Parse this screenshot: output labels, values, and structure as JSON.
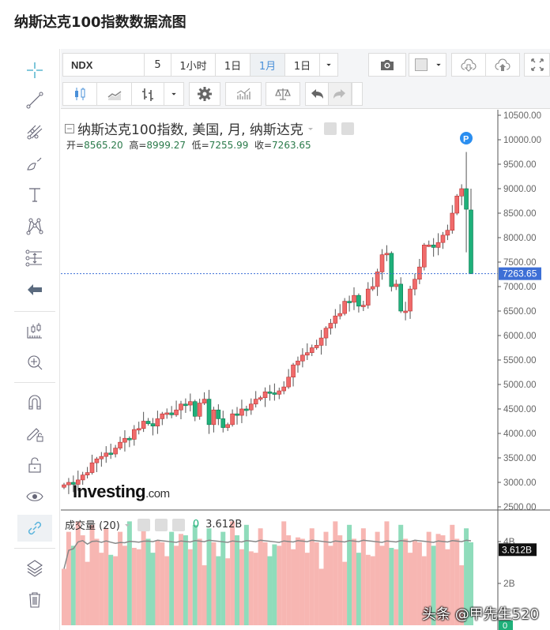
{
  "page_title": "纳斯达克100指数数据流图",
  "toolbar": {
    "symbol": "NDX",
    "intervals": [
      "5",
      "1小时",
      "1日",
      "1月",
      "1日"
    ],
    "selected_interval": "1月",
    "chart_type_icons": [
      "candlestick-icon",
      "line-chart-icon",
      "bar-chart-icon",
      "dropdown-icon",
      "settings-icon",
      "indicators-icon",
      "compare-icon",
      "undo-icon",
      "redo-icon"
    ],
    "right_icons": [
      "camera-icon",
      "color-swatch-icon",
      "cloud-download-icon",
      "cloud-upload-icon",
      "fullscreen-icon"
    ]
  },
  "left_tools": [
    "crosshair-icon",
    "trend-line-icon",
    "pitchfork-icon",
    "brush-icon",
    "text-icon",
    "pattern-icon",
    "fibonacci-icon",
    "back-arrow-icon",
    "measure-icon",
    "zoom-in-icon",
    "magnet-icon",
    "lock-drawing-icon",
    "unlock-icon",
    "eye-icon",
    "link-icon",
    "layers-icon",
    "trash-icon"
  ],
  "legend": {
    "title": "纳斯达克100指数, 美国, 月, 纳斯达克",
    "open_label": "开=",
    "open": "8565.20",
    "high_label": "高=",
    "high": "8999.27",
    "low_label": "低=",
    "low": "7255.99",
    "close_label": "收=",
    "close": "7263.65"
  },
  "price_axis": [
    "10500.00",
    "10000.00",
    "9500.00",
    "9000.00",
    "8500.00",
    "8000.00",
    "7500.00",
    "7000.00",
    "6500.00",
    "6000.00",
    "5500.00",
    "5000.00",
    "4500.00",
    "4000.00",
    "3500.00",
    "3000.00",
    "2500.00"
  ],
  "last_price": "7263.65",
  "volume": {
    "label": "成交量 (20)",
    "value_zero": "0",
    "value": "3.612B",
    "axis": [
      "4B",
      "2B",
      "0"
    ],
    "last": "3.612B"
  },
  "logo": {
    "main": "Investing",
    "suffix": ".com"
  },
  "watermark": "头条 @甲先生520",
  "marker": "P",
  "colors": {
    "up": "#f06a6a",
    "down": "#1fb07a",
    "last_price_bg": "#3d6fd6",
    "vol_up": "#f7b6b2",
    "vol_down": "#8fdcbb"
  },
  "chart_data": {
    "type": "candlestick",
    "title": "纳斯达克100指数, 美国, 月, 纳斯达克",
    "ylim": [
      2500,
      10500
    ],
    "y_ticks": [
      2500,
      3000,
      3500,
      4000,
      4500,
      5000,
      5500,
      6000,
      6500,
      7000,
      7500,
      8000,
      8500,
      9000,
      9500,
      10000,
      10500
    ],
    "last_bar": {
      "open": 8565.2,
      "high": 8999.27,
      "low": 7255.99,
      "close": 7263.65
    },
    "closes_approx": [
      2950,
      3000,
      2960,
      3050,
      3150,
      3200,
      3400,
      3480,
      3530,
      3600,
      3580,
      3700,
      3820,
      3900,
      3880,
      4080,
      4100,
      4250,
      4200,
      4150,
      4300,
      4400,
      4420,
      4380,
      4480,
      4600,
      4580,
      4650,
      4350,
      4620,
      4700,
      4180,
      4480,
      4300,
      4120,
      4180,
      4400,
      4370,
      4500,
      4480,
      4600,
      4700,
      4730,
      4850,
      4830,
      4800,
      4870,
      4950,
      5150,
      5400,
      5480,
      5600,
      5650,
      5750,
      5800,
      5950,
      6150,
      6250,
      6400,
      6450,
      6700,
      6680,
      6820,
      6600,
      6620,
      6950,
      7000,
      7300,
      7650,
      7680,
      7000,
      7050,
      6500,
      6500,
      6950,
      7150,
      7400,
      7850,
      7850,
      7800,
      7900,
      8050,
      8150,
      8500,
      8850,
      9000,
      8580,
      7264
    ],
    "volume_axis": [
      "0",
      "2B",
      "4B"
    ],
    "volume_last": "3.612B",
    "volume_ma_period": 20
  }
}
